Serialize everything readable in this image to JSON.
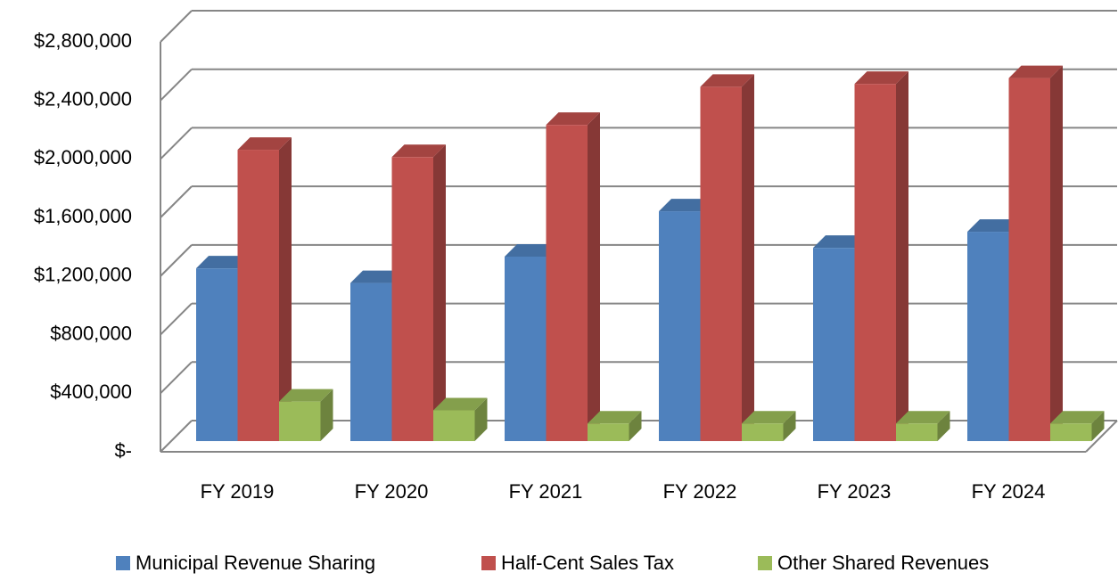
{
  "chart_data": {
    "type": "bar3d",
    "categories": [
      "FY 2019",
      "FY 2020",
      "FY 2021",
      "FY 2022",
      "FY 2023",
      "FY 2024"
    ],
    "series": [
      {
        "name": "Municipal Revenue Sharing",
        "color": "#4f81bd",
        "values": [
          1180000,
          1080000,
          1260000,
          1570000,
          1320000,
          1430000
        ]
      },
      {
        "name": "Half-Cent Sales Tax",
        "color": "#c0504d",
        "values": [
          1990000,
          1940000,
          2160000,
          2420000,
          2440000,
          2480000
        ]
      },
      {
        "name": "Other Shared Revenues",
        "color": "#9bbb59",
        "values": [
          270000,
          210000,
          120000,
          120000,
          120000,
          120000
        ]
      }
    ],
    "ylim": [
      0,
      2800000
    ],
    "yticks": [
      {
        "value": 0,
        "label": "$-"
      },
      {
        "value": 400000,
        "label": "$400,000"
      },
      {
        "value": 800000,
        "label": "$800,000"
      },
      {
        "value": 1200000,
        "label": "$1,200,000"
      },
      {
        "value": 1600000,
        "label": "$1,600,000"
      },
      {
        "value": 2000000,
        "label": "$2,000,000"
      },
      {
        "value": 2400000,
        "label": "$2,400,000"
      },
      {
        "value": 2800000,
        "label": "$2,800,000"
      }
    ],
    "grid": true,
    "legend": "bottom"
  }
}
